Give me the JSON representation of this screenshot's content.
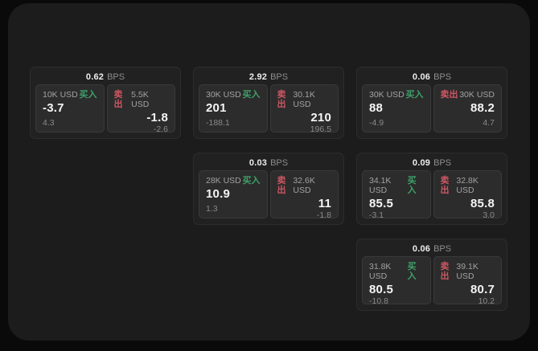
{
  "labels": {
    "bps": "BPS",
    "buy": "买入",
    "sell": "卖出"
  },
  "colors": {
    "buy": "#3fa06a",
    "sell": "#cd5663",
    "panel_bg": "#1c1c1c",
    "card_bg": "#212121",
    "tile_bg": "#2c2c2c",
    "outer_bg": "#0a0a0a"
  },
  "cards": [
    {
      "bps": "0.62",
      "row": 1,
      "col": 1,
      "buy": {
        "notional": "10K USD",
        "value": "-3.7",
        "sub": "4.3"
      },
      "sell": {
        "notional": "5.5K USD",
        "value": "-1.8",
        "sub": "-2.6"
      }
    },
    {
      "bps": "2.92",
      "row": 1,
      "col": 2,
      "buy": {
        "notional": "30K USD",
        "value": "201",
        "sub": "-188.1"
      },
      "sell": {
        "notional": "30.1K USD",
        "value": "210",
        "sub": "196.5"
      }
    },
    {
      "bps": "0.06",
      "row": 1,
      "col": 3,
      "buy": {
        "notional": "30K USD",
        "value": "88",
        "sub": "-4.9"
      },
      "sell": {
        "notional": "30K USD",
        "value": "88.2",
        "sub": "4.7"
      }
    },
    {
      "bps": "0.03",
      "row": 2,
      "col": 2,
      "buy": {
        "notional": "28K USD",
        "value": "10.9",
        "sub": "1.3"
      },
      "sell": {
        "notional": "32.6K USD",
        "value": "11",
        "sub": "-1.8"
      }
    },
    {
      "bps": "0.09",
      "row": 2,
      "col": 3,
      "buy": {
        "notional": "34.1K USD",
        "value": "85.5",
        "sub": "-3.1"
      },
      "sell": {
        "notional": "32.8K USD",
        "value": "85.8",
        "sub": "3.0"
      }
    },
    {
      "bps": "0.06",
      "row": 3,
      "col": 3,
      "buy": {
        "notional": "31.8K USD",
        "value": "80.5",
        "sub": "-10.8"
      },
      "sell": {
        "notional": "39.1K USD",
        "value": "80.7",
        "sub": "10.2"
      }
    }
  ]
}
